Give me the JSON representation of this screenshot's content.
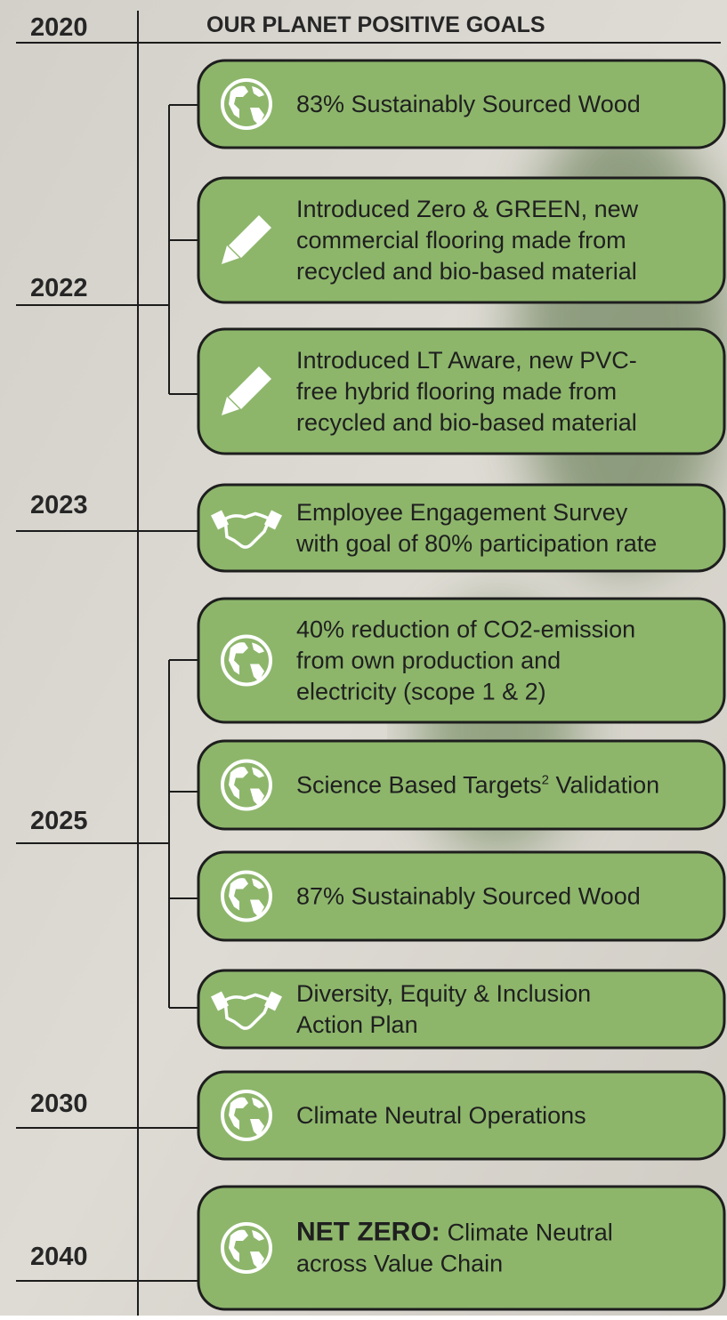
{
  "title": "OUR PLANET POSITIVE GOALS",
  "years": [
    "2020",
    "2022",
    "2023",
    "2025",
    "2030",
    "2040"
  ],
  "goals": [
    {
      "lines": [
        "83% Sustainably Sourced Wood"
      ]
    },
    {
      "lines": [
        "Introduced Zero & GREEN, new",
        "commercial flooring made from",
        "recycled and bio-based material"
      ]
    },
    {
      "lines": [
        "Introduced LT Aware, new PVC-",
        "free hybrid flooring made from",
        "recycled and bio-based material"
      ]
    },
    {
      "lines": [
        "Employee Engagement Survey",
        "with goal of 80% participation rate"
      ]
    },
    {
      "lines": [
        "40% reduction of CO2-emission",
        "from own production and",
        "electricity (scope 1 & 2)"
      ]
    },
    {
      "lines": [
        "Science Based Targets"
      ],
      "superscript": "2",
      "after": " Validation"
    },
    {
      "lines": [
        "87% Sustainably Sourced Wood"
      ]
    },
    {
      "lines": [
        "Diversity, Equity & Inclusion",
        "Action Plan"
      ]
    },
    {
      "lines": [
        "Climate Neutral Operations"
      ]
    },
    {
      "bold": "NET ZERO:",
      "lines": [
        "Climate Neutral",
        "across Value Chain"
      ]
    }
  ]
}
